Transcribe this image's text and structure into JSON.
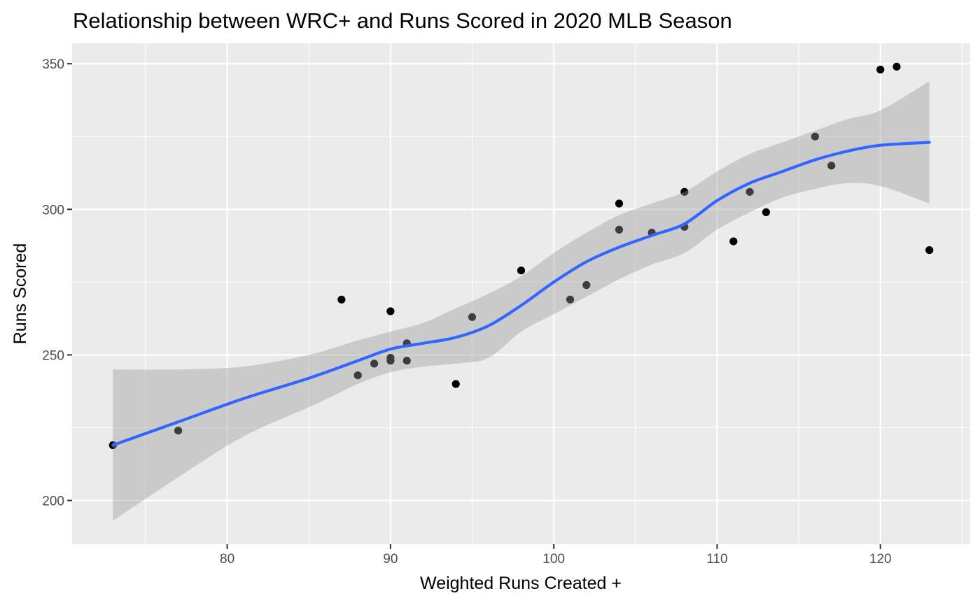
{
  "chart_data": {
    "type": "scatter",
    "title": "Relationship between WRC+ and Runs Scored in 2020 MLB Season",
    "xlabel": "Weighted Runs Created +",
    "ylabel": "Runs Scored",
    "xlim": [
      70.5,
      125.5
    ],
    "ylim": [
      185,
      357
    ],
    "x_ticks": [
      80,
      90,
      100,
      110,
      120
    ],
    "y_ticks": [
      200,
      250,
      300,
      350
    ],
    "grid": true,
    "colors": {
      "panel_background": "#ebebeb",
      "grid": "#ffffff",
      "points": "#000000",
      "smooth_line": "#3366ff",
      "confidence_band": "#999999",
      "tick_text": "#4d4d4d",
      "tick_marks": "#333333"
    },
    "series": [
      {
        "type": "points",
        "points": [
          [
            73,
            219
          ],
          [
            77,
            224
          ],
          [
            87,
            269
          ],
          [
            88,
            243
          ],
          [
            89,
            247
          ],
          [
            90,
            249
          ],
          [
            90,
            248
          ],
          [
            90,
            265
          ],
          [
            91,
            254
          ],
          [
            91,
            248
          ],
          [
            94,
            240
          ],
          [
            95,
            263
          ],
          [
            98,
            279
          ],
          [
            101,
            269
          ],
          [
            102,
            274
          ],
          [
            104,
            302
          ],
          [
            104,
            293
          ],
          [
            106,
            292
          ],
          [
            108,
            306
          ],
          [
            108,
            294
          ],
          [
            111,
            289
          ],
          [
            112,
            306
          ],
          [
            113,
            299
          ],
          [
            116,
            325
          ],
          [
            117,
            315
          ],
          [
            120,
            348
          ],
          [
            121,
            349
          ],
          [
            123,
            286
          ]
        ]
      },
      {
        "type": "loess",
        "fit": [
          [
            73,
            219
          ],
          [
            77,
            227
          ],
          [
            81,
            235
          ],
          [
            85,
            242
          ],
          [
            88,
            248
          ],
          [
            90,
            252
          ],
          [
            92,
            254
          ],
          [
            94,
            256
          ],
          [
            96,
            260
          ],
          [
            98,
            267
          ],
          [
            100,
            275
          ],
          [
            102,
            282
          ],
          [
            104,
            287
          ],
          [
            106,
            291
          ],
          [
            108,
            295
          ],
          [
            110,
            303
          ],
          [
            112,
            309
          ],
          [
            114,
            313
          ],
          [
            116,
            317
          ],
          [
            118,
            320
          ],
          [
            120,
            322
          ],
          [
            123,
            323
          ]
        ],
        "upper": [
          [
            73,
            245
          ],
          [
            77,
            245
          ],
          [
            81,
            246
          ],
          [
            85,
            250
          ],
          [
            88,
            255
          ],
          [
            90,
            258
          ],
          [
            92,
            261
          ],
          [
            94,
            266
          ],
          [
            96,
            271
          ],
          [
            98,
            277
          ],
          [
            100,
            285
          ],
          [
            102,
            292
          ],
          [
            104,
            298
          ],
          [
            106,
            302
          ],
          [
            108,
            306
          ],
          [
            110,
            313
          ],
          [
            112,
            319
          ],
          [
            114,
            323
          ],
          [
            116,
            327
          ],
          [
            118,
            331
          ],
          [
            120,
            334
          ],
          [
            123,
            344
          ]
        ],
        "lower": [
          [
            73,
            193
          ],
          [
            77,
            208
          ],
          [
            81,
            222
          ],
          [
            85,
            232
          ],
          [
            88,
            240
          ],
          [
            90,
            244
          ],
          [
            92,
            246
          ],
          [
            94,
            247
          ],
          [
            96,
            249
          ],
          [
            98,
            258
          ],
          [
            100,
            264
          ],
          [
            102,
            270
          ],
          [
            104,
            276
          ],
          [
            106,
            281
          ],
          [
            108,
            285
          ],
          [
            110,
            293
          ],
          [
            112,
            299
          ],
          [
            114,
            304
          ],
          [
            116,
            307
          ],
          [
            118,
            309
          ],
          [
            120,
            308
          ],
          [
            123,
            302
          ]
        ]
      }
    ]
  }
}
